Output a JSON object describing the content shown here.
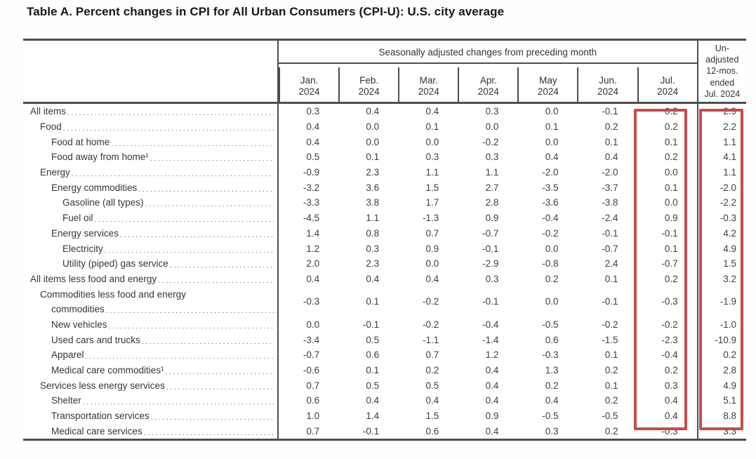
{
  "title": "Table A. Percent changes in CPI for All Urban Consumers (CPI-U): U.S. city average",
  "table": {
    "group_header": "Seasonally adjusted changes from preceding month",
    "month_headers": [
      [
        "Jan.",
        "2024"
      ],
      [
        "Feb.",
        "2024"
      ],
      [
        "Mar.",
        "2024"
      ],
      [
        "Apr.",
        "2024"
      ],
      [
        "May",
        "2024"
      ],
      [
        "Jun.",
        "2024"
      ],
      [
        "Jul.",
        "2024"
      ]
    ],
    "unadjusted_header_lines": [
      "Un-",
      "adjusted",
      "12-mos.",
      "ended",
      "Jul. 2024"
    ],
    "highlight_color": "#c94b4b",
    "highlights": [
      "Jul. 2024 column",
      "Unadjusted 12-mos. column"
    ],
    "rows": [
      {
        "label": "All items",
        "indent": 0,
        "values": [
          "0.3",
          "0.4",
          "0.4",
          "0.3",
          "0.0",
          "-0.1",
          "0.2"
        ],
        "unadjusted": "2.9"
      },
      {
        "label": "Food",
        "indent": 1,
        "values": [
          "0.4",
          "0.0",
          "0.1",
          "0.0",
          "0.1",
          "0.2",
          "0.2"
        ],
        "unadjusted": "2.2"
      },
      {
        "label": "Food at home",
        "indent": 2,
        "values": [
          "0.4",
          "0.0",
          "0.0",
          "-0.2",
          "0.0",
          "0.1",
          "0.1"
        ],
        "unadjusted": "1.1"
      },
      {
        "label": "Food away from home¹",
        "indent": 2,
        "values": [
          "0.5",
          "0.1",
          "0.3",
          "0.3",
          "0.4",
          "0.4",
          "0.2"
        ],
        "unadjusted": "4.1"
      },
      {
        "label": "Energy",
        "indent": 1,
        "values": [
          "-0.9",
          "2.3",
          "1.1",
          "1.1",
          "-2.0",
          "-2.0",
          "0.0"
        ],
        "unadjusted": "1.1"
      },
      {
        "label": "Energy commodities",
        "indent": 2,
        "values": [
          "-3.2",
          "3.6",
          "1.5",
          "2.7",
          "-3.5",
          "-3.7",
          "0.1"
        ],
        "unadjusted": "-2.0"
      },
      {
        "label": "Gasoline (all types)",
        "indent": 3,
        "values": [
          "-3.3",
          "3.8",
          "1.7",
          "2.8",
          "-3.6",
          "-3.8",
          "0.0"
        ],
        "unadjusted": "-2.2"
      },
      {
        "label": "Fuel oil",
        "indent": 3,
        "values": [
          "-4.5",
          "1.1",
          "-1.3",
          "0.9",
          "-0.4",
          "-2.4",
          "0.9"
        ],
        "unadjusted": "-0.3"
      },
      {
        "label": "Energy services",
        "indent": 2,
        "values": [
          "1.4",
          "0.8",
          "0.7",
          "-0.7",
          "-0.2",
          "-0.1",
          "-0.1"
        ],
        "unadjusted": "4.2"
      },
      {
        "label": "Electricity",
        "indent": 3,
        "values": [
          "1.2",
          "0.3",
          "0.9",
          "-0.1",
          "0.0",
          "-0.7",
          "0.1"
        ],
        "unadjusted": "4.9"
      },
      {
        "label": "Utility (piped) gas service",
        "indent": 3,
        "values": [
          "2.0",
          "2.3",
          "0.0",
          "-2.9",
          "-0.8",
          "2.4",
          "-0.7"
        ],
        "unadjusted": "1.5"
      },
      {
        "label": "All items less food and energy",
        "indent": 0,
        "values": [
          "0.4",
          "0.4",
          "0.4",
          "0.3",
          "0.2",
          "0.1",
          "0.2"
        ],
        "unadjusted": "3.2"
      },
      {
        "label": "Commodities less food and energy",
        "label2": "commodities",
        "indent": 1,
        "indent2": 2,
        "values": [
          "-0.3",
          "0.1",
          "-0.2",
          "-0.1",
          "0.0",
          "-0.1",
          "-0.3"
        ],
        "unadjusted": "-1.9"
      },
      {
        "label": "New vehicles",
        "indent": 2,
        "values": [
          "0.0",
          "-0.1",
          "-0.2",
          "-0.4",
          "-0.5",
          "-0.2",
          "-0.2"
        ],
        "unadjusted": "-1.0"
      },
      {
        "label": "Used cars and trucks",
        "indent": 2,
        "values": [
          "-3.4",
          "0.5",
          "-1.1",
          "-1.4",
          "0.6",
          "-1.5",
          "-2.3"
        ],
        "unadjusted": "-10.9"
      },
      {
        "label": "Apparel",
        "indent": 2,
        "values": [
          "-0.7",
          "0.6",
          "0.7",
          "1.2",
          "-0.3",
          "0.1",
          "-0.4"
        ],
        "unadjusted": "0.2"
      },
      {
        "label": "Medical care commodities¹",
        "indent": 2,
        "values": [
          "-0.6",
          "0.1",
          "0.2",
          "0.4",
          "1.3",
          "0.2",
          "0.2"
        ],
        "unadjusted": "2.8"
      },
      {
        "label": "Services less energy services",
        "indent": 1,
        "values": [
          "0.7",
          "0.5",
          "0.5",
          "0.4",
          "0.2",
          "0.1",
          "0.3"
        ],
        "unadjusted": "4.9"
      },
      {
        "label": "Shelter",
        "indent": 2,
        "values": [
          "0.6",
          "0.4",
          "0.4",
          "0.4",
          "0.4",
          "0.2",
          "0.4"
        ],
        "unadjusted": "5.1"
      },
      {
        "label": "Transportation services",
        "indent": 2,
        "values": [
          "1.0",
          "1.4",
          "1.5",
          "0.9",
          "-0.5",
          "-0.5",
          "0.4"
        ],
        "unadjusted": "8.8"
      },
      {
        "label": "Medical care services",
        "indent": 2,
        "values": [
          "0.7",
          "-0.1",
          "0.6",
          "0.4",
          "0.3",
          "0.2",
          "-0.3"
        ],
        "unadjusted": "3.3"
      }
    ]
  }
}
